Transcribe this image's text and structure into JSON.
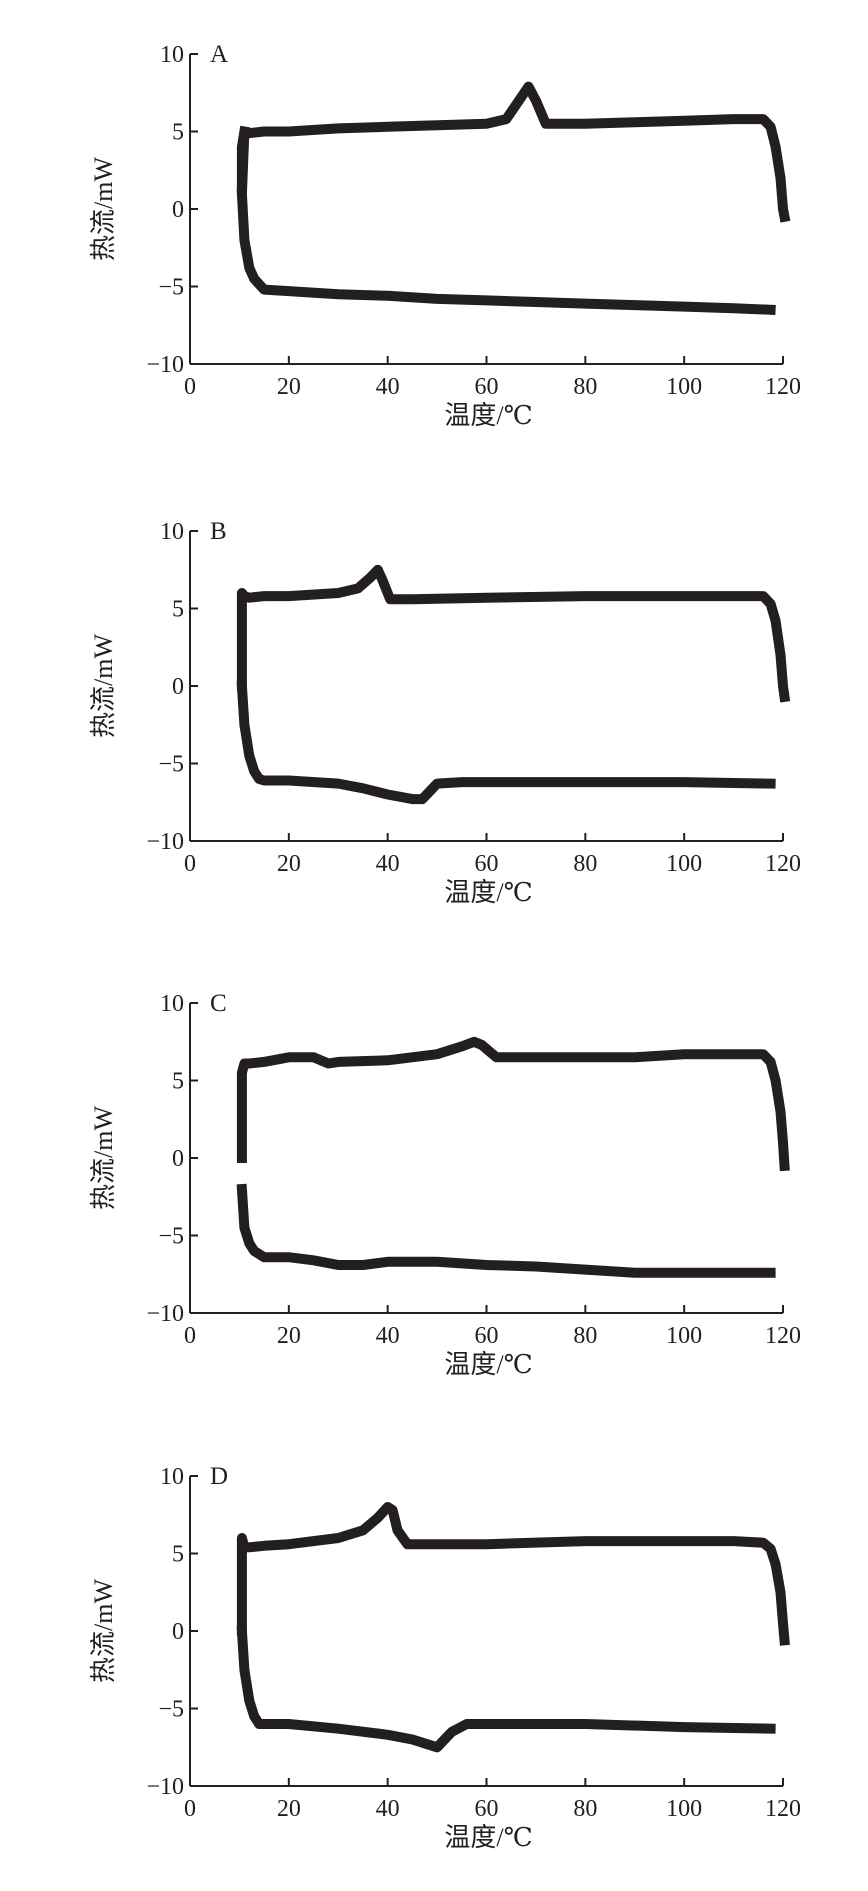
{
  "chart_data": [
    {
      "type": "line",
      "panel_label": "A",
      "xlabel": "温度/℃",
      "ylabel": "热流/mW",
      "xlim": [
        0,
        120
      ],
      "ylim": [
        -10,
        10
      ],
      "xticks": [
        "0",
        "20",
        "40",
        "60",
        "80",
        "100",
        "120"
      ],
      "yticks": [
        "10",
        "5",
        "0",
        "−5",
        "−10"
      ],
      "series": [
        {
          "x": [
            11,
            10.5,
            10.5,
            11,
            12,
            15,
            20,
            30,
            40,
            50,
            60,
            64,
            67,
            68.5,
            70,
            72,
            80,
            90,
            100,
            110,
            116,
            117.5,
            118.5,
            119.5,
            120,
            120.3
          ],
          "y": [
            5.0,
            4.0,
            1.0,
            5.0,
            4.9,
            5.0,
            5.0,
            5.2,
            5.3,
            5.4,
            5.5,
            5.8,
            7.2,
            7.9,
            7.0,
            5.5,
            5.5,
            5.6,
            5.7,
            5.8,
            5.8,
            5.3,
            4.0,
            2.0,
            0.0,
            -0.5
          ]
        },
        {
          "x": [
            10.5,
            11,
            12,
            13,
            15,
            20,
            30,
            40,
            50,
            60,
            70,
            80,
            90,
            100,
            110,
            117.5
          ],
          "y": [
            1.0,
            -2.0,
            -3.8,
            -4.5,
            -5.2,
            -5.3,
            -5.5,
            -5.6,
            -5.8,
            -5.9,
            -6.0,
            -6.1,
            -6.2,
            -6.3,
            -6.4,
            -6.5
          ]
        }
      ]
    },
    {
      "type": "line",
      "panel_label": "B",
      "xlabel": "温度/℃",
      "ylabel": "热流/mW",
      "xlim": [
        0,
        120
      ],
      "ylim": [
        -10,
        10
      ],
      "xticks": [
        "0",
        "20",
        "40",
        "60",
        "80",
        "100",
        "120"
      ],
      "yticks": [
        "10",
        "5",
        "0",
        "−5",
        "−10"
      ],
      "series": [
        {
          "x": [
            10.5,
            10.5,
            11,
            12,
            15,
            20,
            30,
            34,
            36.5,
            38,
            39,
            40.5,
            45,
            60,
            80,
            100,
            110,
            116,
            117.5,
            118.5,
            119.5,
            120,
            120.3
          ],
          "y": [
            0.0,
            6.0,
            5.8,
            5.7,
            5.8,
            5.8,
            6.0,
            6.3,
            7.0,
            7.5,
            6.8,
            5.6,
            5.6,
            5.7,
            5.8,
            5.8,
            5.8,
            5.8,
            5.3,
            4.2,
            2.0,
            0.0,
            -0.7
          ]
        },
        {
          "x": [
            10.5,
            11,
            12,
            13,
            14,
            15,
            20,
            30,
            35,
            40,
            45,
            47,
            48.5,
            50,
            55,
            60,
            80,
            100,
            117.5
          ],
          "y": [
            0.0,
            -2.5,
            -4.5,
            -5.5,
            -6.0,
            -6.1,
            -6.1,
            -6.3,
            -6.6,
            -7.0,
            -7.3,
            -7.3,
            -6.8,
            -6.3,
            -6.2,
            -6.2,
            -6.2,
            -6.2,
            -6.3
          ]
        }
      ]
    },
    {
      "type": "line",
      "panel_label": "C",
      "xlabel": "温度/℃",
      "ylabel": "热流/mW",
      "xlim": [
        0,
        120
      ],
      "ylim": [
        -10,
        10
      ],
      "xticks": [
        "0",
        "20",
        "40",
        "60",
        "80",
        "100",
        "120"
      ],
      "yticks": [
        "10",
        "5",
        "0",
        "−5",
        "−10"
      ],
      "series": [
        {
          "x": [
            10.5,
            10.5,
            11,
            12,
            15,
            20,
            25,
            28,
            30,
            40,
            50,
            55,
            57.5,
            59,
            62,
            70,
            80,
            90,
            100,
            110,
            116,
            117.5,
            118.5,
            119.5,
            120,
            120.3
          ],
          "y": [
            0.0,
            5.5,
            6.1,
            6.1,
            6.2,
            6.5,
            6.5,
            6.1,
            6.2,
            6.3,
            6.7,
            7.2,
            7.5,
            7.3,
            6.5,
            6.5,
            6.5,
            6.5,
            6.7,
            6.7,
            6.7,
            6.2,
            5.0,
            3.0,
            1.0,
            -0.5
          ]
        },
        {
          "x": [
            10.5,
            11,
            12,
            13,
            15,
            20,
            25,
            30,
            35,
            40,
            50,
            55,
            60,
            70,
            80,
            90,
            100,
            117.5
          ],
          "y": [
            -2.0,
            -4.5,
            -5.5,
            -6.0,
            -6.4,
            -6.4,
            -6.6,
            -6.9,
            -6.9,
            -6.7,
            -6.7,
            -6.8,
            -6.9,
            -7.0,
            -7.2,
            -7.4,
            -7.4,
            -7.4
          ]
        }
      ]
    },
    {
      "type": "line",
      "panel_label": "D",
      "xlabel": "温度/℃",
      "ylabel": "热流/mW",
      "xlim": [
        0,
        120
      ],
      "ylim": [
        -10,
        10
      ],
      "xticks": [
        "0",
        "20",
        "40",
        "60",
        "80",
        "100",
        "120"
      ],
      "yticks": [
        "10",
        "5",
        "0",
        "−5",
        "−10"
      ],
      "series": [
        {
          "x": [
            10.5,
            10.5,
            11,
            12,
            15,
            20,
            30,
            35,
            38,
            40,
            41,
            42,
            44,
            50,
            60,
            80,
            100,
            110,
            116,
            117.5,
            118.5,
            119.5,
            120,
            120.3
          ],
          "y": [
            0.0,
            6.0,
            5.4,
            5.4,
            5.5,
            5.6,
            6.0,
            6.5,
            7.3,
            8.0,
            7.8,
            6.5,
            5.6,
            5.6,
            5.6,
            5.8,
            5.8,
            5.8,
            5.7,
            5.3,
            4.3,
            2.5,
            0.5,
            -0.6
          ]
        },
        {
          "x": [
            10.5,
            11,
            12,
            13,
            14,
            15,
            20,
            30,
            40,
            45,
            48,
            50,
            51.5,
            53,
            56,
            60,
            80,
            100,
            117.5
          ],
          "y": [
            0.0,
            -2.5,
            -4.5,
            -5.5,
            -6.0,
            -6.0,
            -6.0,
            -6.3,
            -6.7,
            -7.0,
            -7.3,
            -7.5,
            -7.0,
            -6.5,
            -6.0,
            -6.0,
            -6.0,
            -6.2,
            -6.3
          ]
        }
      ]
    }
  ]
}
